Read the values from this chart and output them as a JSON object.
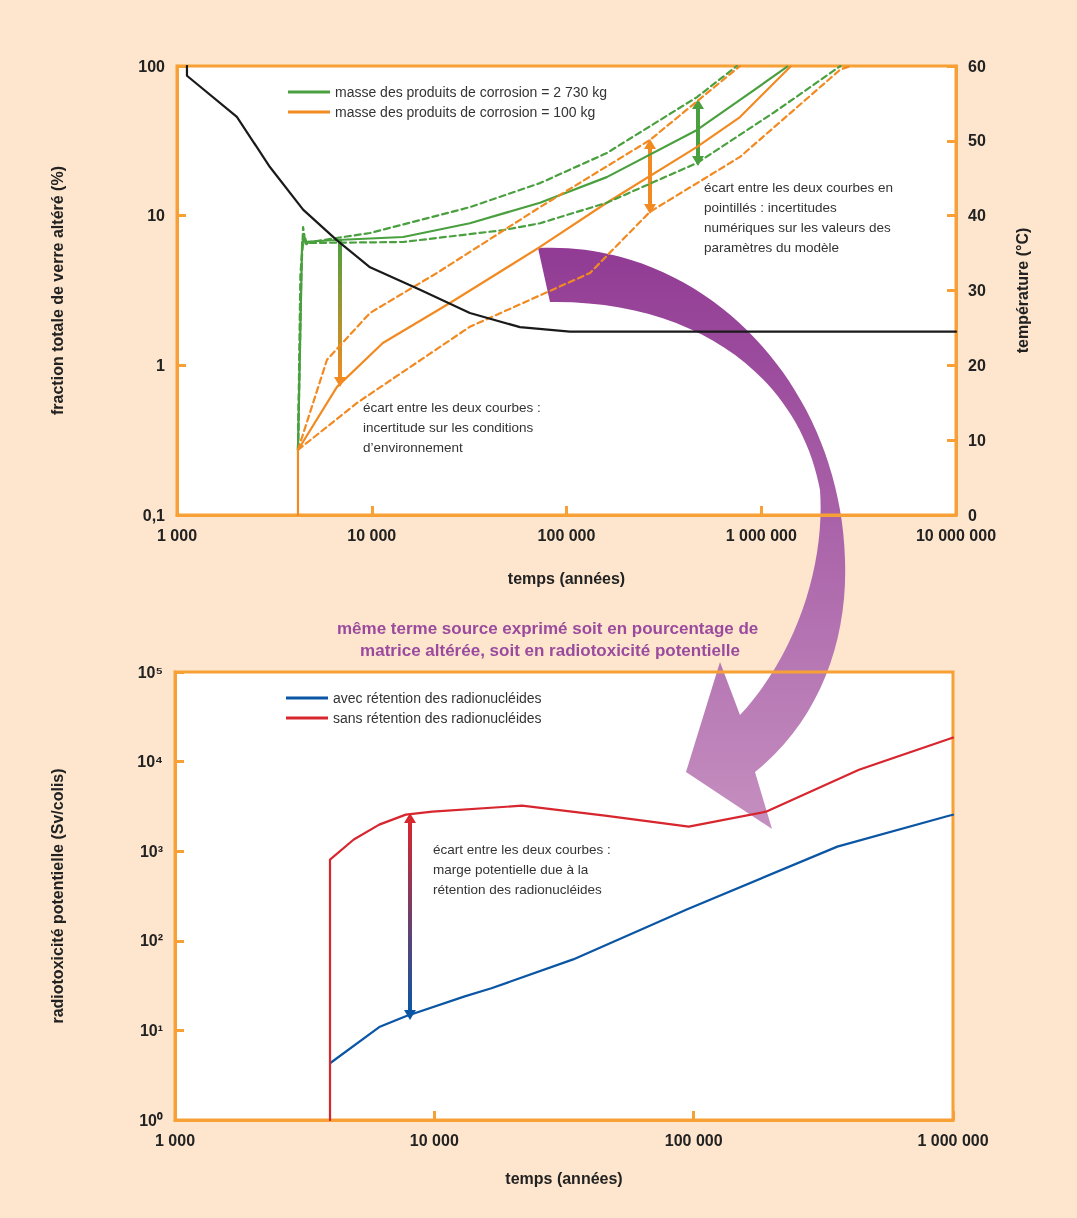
{
  "chart_data": [
    {
      "type": "line",
      "xlabel": "temps (années)",
      "ylabel": "fraction totale de verre altéré (%)",
      "y2label": "température (°C)",
      "log": "xy",
      "legend": "top left",
      "xlim": [
        1000,
        10000000
      ],
      "xticks": [
        {
          "value": 1000,
          "label": "1 000"
        },
        {
          "value": 10000,
          "label": "10 000"
        },
        {
          "value": 100000,
          "label": "100 000"
        },
        {
          "value": 1000000,
          "label": "1 000 000"
        },
        {
          "value": 10000000,
          "label": "10 000 000"
        }
      ],
      "ylim": [
        0.1,
        100
      ],
      "yticks": [
        {
          "value": 0.1,
          "label": "0,1"
        },
        1,
        10,
        100
      ],
      "y2lim": [
        0,
        60
      ],
      "y2ticks": [
        0,
        10,
        20,
        30,
        40,
        50,
        60
      ],
      "series": [
        {
          "name": "masse des produits de corrosion = 2 730 kg",
          "color": "#4aa03f",
          "x": [
            4180,
            4390,
            6630,
            14500,
            31900,
            73100,
            161000,
            468000,
            778000,
            1360000
          ],
          "values": [
            0.272,
            6.67,
            6.88,
            7.2,
            8.9,
            12.2,
            18.1,
            37.4,
            59.3,
            99
          ]
        },
        {
          "name": "masse des produits de corrosion = 100 kg",
          "color": "#f28a22",
          "x": [
            4180,
            4180,
            6630,
            11400,
            25200,
            73100,
            161000,
            468000,
            778000,
            1410000
          ],
          "values": [
            0.1,
            0.272,
            0.718,
            1.41,
            2.61,
            6.18,
            12.2,
            28.8,
            45.6,
            99
          ]
        },
        {
          "color": "#4aa03f",
          "line_style": "dashed",
          "x": [
            4180,
            4350,
            4440,
            4560,
            4820,
            9800,
            31900,
            73100,
            161000,
            468000,
            750000
          ],
          "values": [
            0.272,
            4,
            8.4,
            6.5,
            6.67,
            7.66,
            11.4,
            16.5,
            26.2,
            62,
            100
          ]
        },
        {
          "color": "#4aa03f",
          "line_style": "dashed",
          "x": [
            4180,
            4300,
            4400,
            4500,
            4650,
            4820,
            14500,
            47200,
            73100,
            161000,
            468000,
            1150000,
            2550000
          ],
          "values": [
            0.272,
            4,
            6,
            7.5,
            6.4,
            6.57,
            6.67,
            8.0,
            8.9,
            12.2,
            22.5,
            48.5,
            100
          ]
        },
        {
          "color": "#f28a22",
          "line_style": "dashed",
          "x": [
            4180,
            5890,
            9800,
            21600,
            73100,
            268000,
            778000
          ],
          "values": [
            0.272,
            1.09,
            2.24,
            4.14,
            11.4,
            32,
            100
          ]
        },
        {
          "color": "#f28a22",
          "line_style": "dashed",
          "x": [
            4180,
            8400,
            31900,
            132000,
            268000,
            778000,
            2530000,
            2860000
          ],
          "values": [
            0.272,
            0.561,
            1.81,
            4.14,
            10.6,
            24.7,
            94,
            100
          ]
        },
        {
          "color": "#1a1a1a",
          "axis": "y2",
          "x": [
            1125,
            1125,
            2030,
            3000,
            4440,
            6630,
            9800,
            17700,
            31900,
            57700,
            104000,
            10000000
          ],
          "values": [
            60,
            58.7,
            53.2,
            46.5,
            40.8,
            36.7,
            33.1,
            30.1,
            27.0,
            25.1,
            24.5,
            24.5
          ]
        }
      ],
      "annotations": [
        "écart entre les deux courbes : incertitude sur les conditions d’environnement",
        "écart entre les deux courbes en pointillés : incertitudes numériques sur les valeurs des paramètres du modèle"
      ]
    },
    {
      "type": "line",
      "title": "même terme source exprimé soit en pourcentage de matrice altérée, soit en radiotoxicité potentielle",
      "xlabel": "temps (années)",
      "ylabel": "radiotoxicité potentielle (Sv/colis)",
      "log": "xy",
      "legend": "top left",
      "xlim": [
        1000,
        1000000
      ],
      "xticks": [
        {
          "value": 1000,
          "label": "1 000"
        },
        {
          "value": 10000,
          "label": "10 000"
        },
        {
          "value": 100000,
          "label": "100 000"
        },
        {
          "value": 1000000,
          "label": "1 000 000"
        }
      ],
      "ylim": [
        1,
        100000
      ],
      "yticks": [
        {
          "value": 1,
          "label": "10⁰"
        },
        {
          "value": 10,
          "label": "10¹"
        },
        {
          "value": 100,
          "label": "10²"
        },
        {
          "value": 1000,
          "label": "10³"
        },
        {
          "value": 10000,
          "label": "10⁴"
        },
        {
          "value": 100000,
          "label": "10⁵"
        }
      ],
      "series": [
        {
          "name": "avec rétention des radionucléides",
          "color": "#0b56a4",
          "x": [
            3960,
            6130,
            7760,
            13100,
            16600,
            34300,
            94000,
            358000,
            964000,
            1000000
          ],
          "values": [
            4.3,
            10.9,
            14.4,
            24,
            29.5,
            62,
            224,
            1125,
            2490,
            2550
          ]
        },
        {
          "name": "sans rétention des radionucléides",
          "color": "#d7262e",
          "x": [
            3960,
            3960,
            4890,
            6130,
            7760,
            9830,
            21800,
            45500,
            95700,
            190000,
            434000,
            964000,
            1000000
          ],
          "values": [
            1,
            805,
            1350,
            1980,
            2560,
            2760,
            3220,
            2490,
            1880,
            2760,
            8110,
            17900,
            18500
          ]
        }
      ],
      "annotations": [
        "écart entre les deux courbes : marge potentielle due à la rétention des radionucléides"
      ]
    }
  ]
}
